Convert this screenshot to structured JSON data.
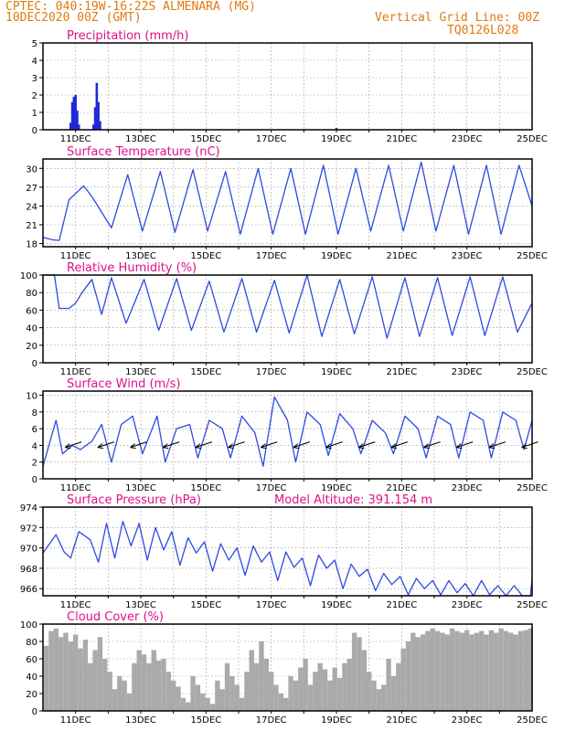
{
  "header": {
    "line1": "CPTEC:   040:19W-16:22S  ALMENARA (MG)",
    "line2": "10DEC2020 00Z (GMT)",
    "grid_note": "Vertical Grid Line: 00Z",
    "code": "TQ0126L028"
  },
  "colors": {
    "header": "#e07a10",
    "title": "#e0108c",
    "line": "#2d4be0",
    "bar": "#1f2bd8",
    "cloud": "#aaaaaa",
    "grid": "#8a8a8a",
    "arrow": "#000000"
  },
  "chart_data": [
    {
      "type": "bar",
      "title": "Precipitation (mm/h)",
      "x_tick_labels": [
        "11DEC",
        "13DEC",
        "15DEC",
        "17DEC",
        "19DEC",
        "21DEC",
        "23DEC",
        "25DEC"
      ],
      "yticks": [
        "0",
        "1",
        "2",
        "3",
        "4",
        "5"
      ],
      "ylim": [
        0,
        5
      ],
      "x_range_days": [
        0,
        15
      ],
      "x_units": "days since 10DEC2020 00Z",
      "series": [
        {
          "x": 0.85,
          "values": 0.4
        },
        {
          "x": 0.9,
          "values": 1.6
        },
        {
          "x": 0.95,
          "values": 1.9
        },
        {
          "x": 1.0,
          "values": 2.0
        },
        {
          "x": 1.05,
          "values": 1.1
        },
        {
          "x": 1.1,
          "values": 0.3
        },
        {
          "x": 1.55,
          "values": 0.3
        },
        {
          "x": 1.6,
          "values": 1.3
        },
        {
          "x": 1.65,
          "values": 2.7
        },
        {
          "x": 1.7,
          "values": 1.6
        },
        {
          "x": 1.75,
          "values": 0.5
        },
        {
          "x": 9.0,
          "values": 0.1
        }
      ]
    },
    {
      "type": "line",
      "title": "Surface Temperature (nC)",
      "x_tick_labels": [
        "11DEC",
        "13DEC",
        "15DEC",
        "17DEC",
        "19DEC",
        "21DEC",
        "23DEC",
        "25DEC"
      ],
      "yticks": [
        "18",
        "21",
        "24",
        "27",
        "30"
      ],
      "ylim": [
        17.5,
        31.5
      ],
      "x": [
        0,
        0.3,
        0.5,
        0.8,
        1.0,
        1.25,
        1.5,
        2.1,
        2.6,
        3.05,
        3.6,
        4.05,
        4.6,
        5.05,
        5.6,
        6.05,
        6.6,
        7.05,
        7.6,
        8.05,
        8.6,
        9.05,
        9.6,
        10.05,
        10.6,
        11.05,
        11.6,
        12.05,
        12.6,
        13.05,
        13.6,
        14.05,
        14.6,
        15.0
      ],
      "values": [
        19,
        18.6,
        18.5,
        25,
        26,
        27.2,
        25.5,
        20.5,
        29,
        20,
        29.5,
        19.8,
        29.8,
        20,
        29.5,
        19.5,
        30,
        19.5,
        30,
        19.5,
        30.5,
        19.5,
        30,
        20,
        30.5,
        20,
        31,
        20,
        30.5,
        19.5,
        30.5,
        19.5,
        30.5,
        24
      ]
    },
    {
      "type": "line",
      "title": "Relative Humidity (%)",
      "x_tick_labels": [
        "11DEC",
        "13DEC",
        "15DEC",
        "17DEC",
        "19DEC",
        "21DEC",
        "23DEC",
        "25DEC"
      ],
      "yticks": [
        "0",
        "20",
        "40",
        "60",
        "80",
        "100"
      ],
      "ylim": [
        0,
        100
      ],
      "x": [
        0,
        0.35,
        0.5,
        0.8,
        1.0,
        1.2,
        1.5,
        1.8,
        2.1,
        2.55,
        3.1,
        3.55,
        4.1,
        4.55,
        5.1,
        5.55,
        6.1,
        6.55,
        7.1,
        7.55,
        8.1,
        8.55,
        9.1,
        9.55,
        10.1,
        10.55,
        11.1,
        11.55,
        12.1,
        12.55,
        13.1,
        13.55,
        14.1,
        14.55,
        15.0
      ],
      "values": [
        100,
        100,
        62,
        62,
        68,
        80,
        95,
        55,
        97,
        45,
        95,
        37,
        96,
        37,
        93,
        35,
        96,
        35,
        94,
        34,
        100,
        30,
        95,
        33,
        98,
        28,
        97,
        30,
        97,
        31,
        98,
        31,
        98,
        35,
        68
      ]
    },
    {
      "type": "line",
      "title": "Surface Wind (m/s)",
      "x_tick_labels": [
        "11DEC",
        "13DEC",
        "15DEC",
        "17DEC",
        "19DEC",
        "21DEC",
        "23DEC",
        "25DEC"
      ],
      "yticks": [
        "0",
        "2",
        "4",
        "6",
        "8",
        "10"
      ],
      "ylim": [
        0,
        10.5
      ],
      "x": [
        0,
        0.4,
        0.6,
        0.9,
        1.15,
        1.5,
        1.8,
        2.1,
        2.4,
        2.75,
        3.05,
        3.5,
        3.75,
        4.1,
        4.5,
        4.75,
        5.1,
        5.5,
        5.75,
        6.1,
        6.5,
        6.75,
        7.1,
        7.5,
        7.75,
        8.1,
        8.5,
        8.75,
        9.1,
        9.5,
        9.75,
        10.1,
        10.5,
        10.75,
        11.1,
        11.5,
        11.75,
        12.1,
        12.5,
        12.75,
        13.1,
        13.5,
        13.75,
        14.1,
        14.5,
        14.75,
        15.0
      ],
      "values": [
        1.5,
        7,
        3,
        4,
        3.5,
        4.5,
        6.5,
        2,
        6.5,
        7.5,
        3,
        7.5,
        2,
        6,
        6.5,
        2.5,
        7,
        6,
        2.5,
        7.5,
        5.5,
        1.5,
        9.8,
        7,
        2,
        8,
        6.5,
        2.8,
        7.8,
        6,
        3,
        7,
        5.5,
        3,
        7.5,
        6,
        2.5,
        7.5,
        6.5,
        2.5,
        8,
        7,
        2.5,
        8,
        7,
        3.5,
        7
      ]
    },
    {
      "type": "line",
      "title": "Surface Pressure (hPa)",
      "annotation": "Model Altitude: 391.154 m",
      "x_tick_labels": [
        "11DEC",
        "13DEC",
        "15DEC",
        "17DEC",
        "19DEC",
        "21DEC",
        "23DEC",
        "25DEC"
      ],
      "yticks": [
        "966",
        "968",
        "970",
        "972",
        "974"
      ],
      "ylim": [
        965.3,
        974
      ],
      "x": [
        0,
        0.4,
        0.65,
        0.85,
        1.1,
        1.45,
        1.7,
        1.95,
        2.2,
        2.45,
        2.7,
        2.95,
        3.2,
        3.45,
        3.7,
        3.95,
        4.2,
        4.45,
        4.7,
        4.95,
        5.2,
        5.45,
        5.7,
        5.95,
        6.2,
        6.45,
        6.7,
        6.95,
        7.2,
        7.45,
        7.7,
        7.95,
        8.2,
        8.45,
        8.7,
        8.95,
        9.2,
        9.45,
        9.7,
        9.95,
        10.2,
        10.45,
        10.7,
        10.95,
        11.2,
        11.45,
        11.7,
        11.95,
        12.2,
        12.45,
        12.7,
        12.95,
        13.2,
        13.45,
        13.7,
        13.95,
        14.2,
        14.45,
        14.7,
        14.95,
        15.0
      ],
      "values": [
        969.5,
        971.3,
        969.6,
        969.0,
        971.6,
        970.8,
        968.6,
        972.4,
        969.0,
        972.6,
        970.2,
        972.4,
        968.8,
        972.0,
        969.8,
        971.6,
        968.3,
        971.0,
        969.5,
        970.6,
        967.7,
        970.4,
        968.8,
        970.0,
        967.3,
        970.2,
        968.6,
        969.6,
        966.8,
        969.6,
        968.1,
        969.0,
        966.3,
        969.3,
        968.0,
        968.8,
        966.0,
        968.4,
        967.2,
        967.9,
        965.8,
        967.5,
        966.4,
        967.2,
        965.4,
        967.0,
        966.0,
        966.8,
        965.4,
        966.8,
        965.6,
        966.5,
        965.3,
        966.8,
        965.4,
        966.3,
        965.3,
        966.3,
        965.3,
        965.3,
        967.0
      ]
    },
    {
      "type": "bar",
      "title": "Cloud Cover (%)",
      "x_tick_labels": [
        "11DEC",
        "13DEC",
        "15DEC",
        "17DEC",
        "19DEC",
        "21DEC",
        "23DEC",
        "25DEC"
      ],
      "yticks": [
        "0",
        "20",
        "40",
        "60",
        "80",
        "100"
      ],
      "ylim": [
        0,
        100
      ],
      "x": [
        0.1,
        0.25,
        0.4,
        0.55,
        0.7,
        0.85,
        1.0,
        1.15,
        1.3,
        1.45,
        1.6,
        1.75,
        1.9,
        2.05,
        2.2,
        2.35,
        2.5,
        2.65,
        2.8,
        2.95,
        3.1,
        3.25,
        3.4,
        3.55,
        3.7,
        3.85,
        4.0,
        4.15,
        4.3,
        4.45,
        4.6,
        4.75,
        4.9,
        5.05,
        5.2,
        5.35,
        5.5,
        5.65,
        5.8,
        5.95,
        6.1,
        6.25,
        6.4,
        6.55,
        6.7,
        6.85,
        7.0,
        7.15,
        7.3,
        7.45,
        7.6,
        7.75,
        7.9,
        8.05,
        8.2,
        8.35,
        8.5,
        8.65,
        8.8,
        8.95,
        9.1,
        9.25,
        9.4,
        9.55,
        9.7,
        9.85,
        10.0,
        10.15,
        10.3,
        10.45,
        10.6,
        10.75,
        10.9,
        11.05,
        11.2,
        11.35,
        11.5,
        11.65,
        11.8,
        11.95,
        12.1,
        12.25,
        12.4,
        12.55,
        12.7,
        12.85,
        13.0,
        13.15,
        13.3,
        13.45,
        13.6,
        13.75,
        13.9,
        14.05,
        14.2,
        14.35,
        14.5,
        14.65,
        14.8,
        14.95
      ],
      "values": [
        75,
        92,
        95,
        85,
        90,
        80,
        88,
        72,
        82,
        55,
        70,
        85,
        60,
        45,
        25,
        40,
        35,
        20,
        55,
        70,
        65,
        55,
        70,
        58,
        60,
        45,
        35,
        28,
        15,
        10,
        40,
        30,
        20,
        15,
        8,
        35,
        25,
        55,
        40,
        30,
        15,
        45,
        70,
        55,
        80,
        60,
        45,
        30,
        20,
        15,
        40,
        35,
        50,
        60,
        30,
        45,
        55,
        48,
        35,
        50,
        38,
        55,
        60,
        90,
        85,
        70,
        45,
        35,
        25,
        30,
        60,
        40,
        55,
        72,
        80,
        90,
        85,
        88,
        92,
        95,
        92,
        90,
        88,
        95,
        92,
        90,
        93,
        88,
        90,
        92,
        88,
        93,
        90,
        95,
        92,
        90,
        88,
        92,
        93,
        95
      ]
    }
  ]
}
